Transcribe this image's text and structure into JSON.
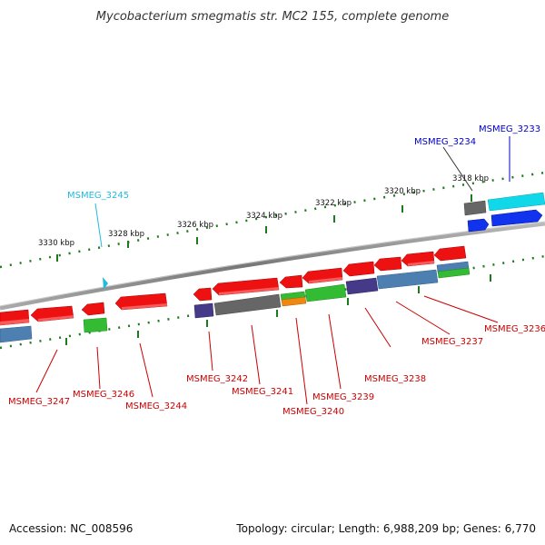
{
  "title": "Mycobacterium smegmatis str. MC2 155, complete genome",
  "footer": {
    "accession": "Accession: NC_008596",
    "summary": "Topology: circular; Length: 6,988,209 bp; Genes: 6,770"
  },
  "scale_labels": [
    "3330 kbp",
    "3328 kbp",
    "3326 kbp",
    "3324 kbp",
    "3322 kbp",
    "3320 kbp",
    "3318 kbp"
  ],
  "gene_labels": [
    {
      "text": "MSMEG_3233",
      "color": "#0000cc"
    },
    {
      "text": "MSMEG_3234",
      "color": "#0000cc"
    },
    {
      "text": "MSMEG_3245",
      "color": "#22bbdd"
    },
    {
      "text": "MSMEG_3236",
      "color": "#cc0000"
    },
    {
      "text": "MSMEG_3237",
      "color": "#cc0000"
    },
    {
      "text": "MSMEG_3238",
      "color": "#cc0000"
    },
    {
      "text": "MSMEG_3239",
      "color": "#cc0000"
    },
    {
      "text": "MSMEG_3240",
      "color": "#cc0000"
    },
    {
      "text": "MSMEG_3241",
      "color": "#cc0000"
    },
    {
      "text": "MSMEG_3242",
      "color": "#cc0000"
    },
    {
      "text": "MSMEG_3244",
      "color": "#cc0000"
    },
    {
      "text": "MSMEG_3246",
      "color": "#cc0000"
    },
    {
      "text": "MSMEG_3247",
      "color": "#cc0000"
    }
  ],
  "feature_colors": {
    "red": "#ee1111",
    "grey": "#666666",
    "green": "#33bb33",
    "orange": "#ee8811",
    "purple": "#443a88",
    "steelblue": "#4d7fb0",
    "cyan": "#11d8e8",
    "blue": "#1133ee",
    "backbone": "#888888",
    "ticks": "#1d7a1d"
  }
}
